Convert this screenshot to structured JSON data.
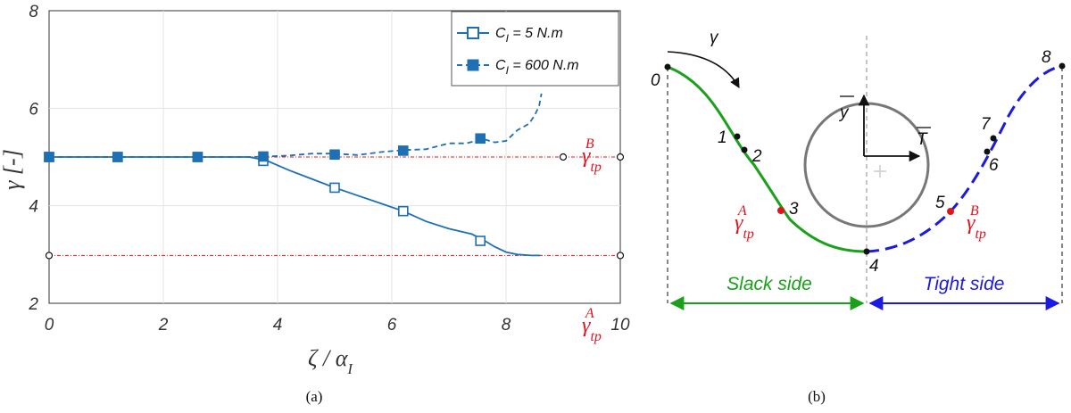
{
  "chart_data": [
    {
      "type": "line",
      "panel_label": "(a)",
      "xlabel": {
        "main": "ζ / α",
        "sub": "I"
      },
      "ylabel": "γ [-]",
      "xlim": [
        0,
        10
      ],
      "ylim": [
        2,
        8
      ],
      "xticks": [
        "0",
        "2",
        "4",
        "6",
        "8",
        "10"
      ],
      "yticks": [
        "2",
        "4",
        "6",
        "8"
      ],
      "grid": true,
      "legend_position": "top-right",
      "series": [
        {
          "name": "C",
          "name_sub": "I",
          "name_rest": " = 5 N.m",
          "style": "solid",
          "marker": "open-square",
          "color": "#1f6fb4",
          "x": [
            0,
            0.5,
            1,
            1.5,
            2,
            2.5,
            3,
            3.5,
            3.8,
            4.2,
            4.6,
            5,
            5.4,
            5.8,
            6.2,
            6.6,
            7,
            7.4,
            7.6,
            7.8,
            8,
            8.2,
            8.45,
            8.6
          ],
          "y": [
            5.0,
            5.0,
            5.0,
            5.0,
            5.0,
            5.0,
            5.0,
            5.0,
            4.93,
            4.73,
            4.55,
            4.37,
            4.21,
            4.05,
            3.89,
            3.68,
            3.53,
            3.42,
            3.3,
            3.16,
            3.05,
            3.0,
            2.98,
            2.98
          ],
          "marker_x": [
            0,
            1.2,
            2.6,
            3.75,
            5.0,
            6.2,
            7.55
          ],
          "marker_y": [
            5.0,
            5.0,
            5.0,
            4.92,
            4.37,
            3.89,
            3.28
          ]
        },
        {
          "name": "C",
          "name_sub": "I",
          "name_rest": " = 600 N.m",
          "style": "dashed",
          "marker": "filled-square",
          "color": "#1f6fb4",
          "x": [
            0,
            0.5,
            1,
            1.5,
            2,
            2.5,
            3,
            3.5,
            3.8,
            4.2,
            4.6,
            5,
            5.4,
            5.8,
            6.2,
            6.6,
            7,
            7.3,
            7.6,
            7.8,
            8.0,
            8.2,
            8.4,
            8.5,
            8.58,
            8.62
          ],
          "y": [
            5.0,
            5.0,
            5.0,
            5.0,
            5.0,
            5.0,
            5.0,
            5.0,
            5.01,
            5.03,
            5.07,
            5.07,
            5.04,
            5.1,
            5.14,
            5.16,
            5.28,
            5.28,
            5.37,
            5.3,
            5.33,
            5.55,
            5.68,
            5.85,
            6.05,
            6.3
          ],
          "marker_x": [
            0,
            1.2,
            2.6,
            3.75,
            5.0,
            6.2,
            7.55
          ],
          "marker_y": [
            5.0,
            5.0,
            5.0,
            5.01,
            5.05,
            5.13,
            5.38
          ]
        }
      ],
      "reference_lines": [
        {
          "label": "γ",
          "sub": "tp",
          "sup": "B",
          "y": 5.0,
          "color": "#e0141e"
        },
        {
          "label": "γ",
          "sub": "tp",
          "sup": "A",
          "y": 2.98,
          "color": "#e0141e"
        }
      ],
      "reference_markers_x": [
        0,
        9,
        10
      ]
    }
  ],
  "panel_b": {
    "panel_label": "(b)",
    "gamma_label": "γ",
    "y_vector_label": "y",
    "t_vector_label": "T",
    "point_labels": [
      "0",
      "1",
      "2",
      "3",
      "4",
      "5",
      "6",
      "7",
      "8"
    ],
    "gamma_A": {
      "label": "γ",
      "sub": "tp",
      "sup": "A"
    },
    "gamma_B": {
      "label": "γ",
      "sub": "tp",
      "sup": "B"
    },
    "slack_side": {
      "label": "Slack side",
      "color": "#1aa01a"
    },
    "tight_side": {
      "label": "Tight side",
      "color": "#1a1ae0"
    }
  }
}
